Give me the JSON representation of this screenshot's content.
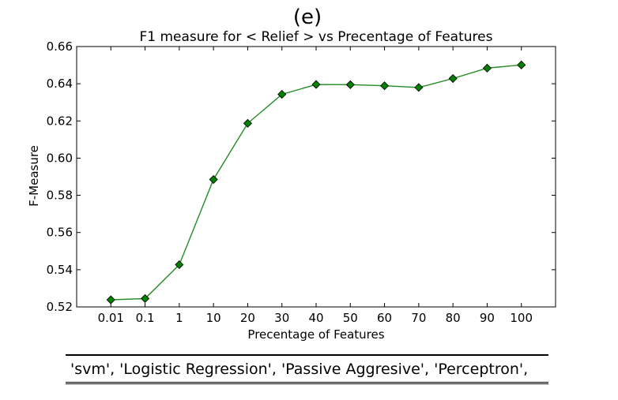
{
  "panel_label": "(e)",
  "caption_text": "'svm', 'Logistic Regression', 'Passive Aggresive', 'Perceptron',",
  "chart_data": {
    "type": "line",
    "title": "F1 measure for < Relief > vs Precentage of Features",
    "xlabel": "Precentage of Features",
    "ylabel": "F-Measure",
    "categories": [
      "0.01",
      "0.1",
      "1",
      "10",
      "20",
      "30",
      "40",
      "50",
      "60",
      "70",
      "80",
      "90",
      "100"
    ],
    "series": [
      {
        "values": [
          0.5238,
          0.5245,
          0.5427,
          0.5885,
          0.6187,
          0.6343,
          0.6396,
          0.6395,
          0.6389,
          0.638,
          0.6428,
          0.6484,
          0.6501
        ],
        "color": "#228b22",
        "marker": "diamond",
        "marker_color": "#007f00"
      }
    ],
    "ylim": [
      0.52,
      0.66
    ],
    "yticks": [
      0.52,
      0.54,
      0.56,
      0.58,
      0.6,
      0.62,
      0.64,
      0.66
    ],
    "ytick_labels": [
      "0.52",
      "0.54",
      "0.56",
      "0.58",
      "0.60",
      "0.62",
      "0.64",
      "0.66"
    ],
    "grid": false,
    "legend": "none"
  }
}
